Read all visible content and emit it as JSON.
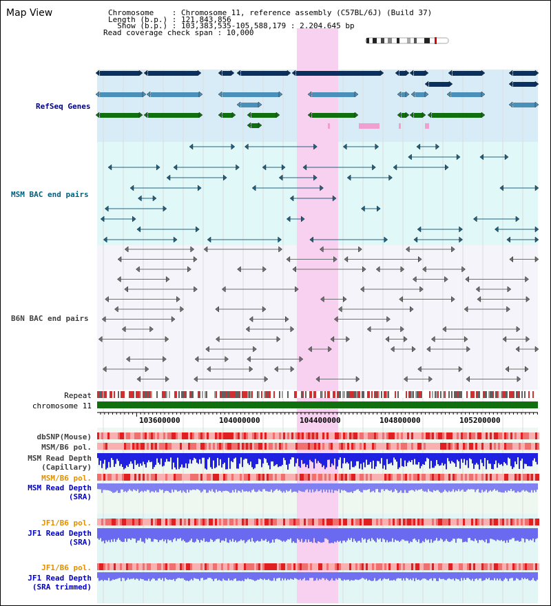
{
  "map_title": "Map View",
  "header": {
    "chromosome_line": "Chromosome    : Chromosome 11, reference assembly (C57BL/6J) (Build 37)",
    "length_line": "Length (b.p.) : 121,843,856",
    "show_line": "  Show (b.p.) : 103,383,535-105,588,179 : 2,204,645 bp",
    "coverage_line": "Read coverage check span : 10,000"
  },
  "track_labels": {
    "refseq": "RefSeq Genes",
    "msm_bac": "MSM BAC end pairs",
    "b6n_bac": "B6N BAC end pairs",
    "repeat": "Repeat",
    "chromosome": "chromosome 11",
    "dbsnp": "dbSNP(Mouse)",
    "msm_b6_pol_1": "MSM/B6 pol.",
    "msm_read_depth_cap_1": "MSM Read Depth",
    "msm_read_depth_cap_2": "(Capillary)",
    "msm_b6_pol_2": "MSM/B6 pol.",
    "msm_read_depth_sra_1": "MSM Read Depth",
    "msm_read_depth_sra_2": "(SRA)",
    "jf1_b6_pol_1": "JF1/B6 pol.",
    "jf1_read_depth_sra_1": "JF1 Read Depth",
    "jf1_read_depth_sra_2": "(SRA)",
    "jf1_b6_pol_2": "JF1/B6 pol.",
    "jf1_read_depth_trim_1": "JF1 Read Depth",
    "jf1_read_depth_trim_2": "(SRA trimmed)"
  },
  "axis": {
    "ticks": [
      "103600000",
      "104000000",
      "104400000",
      "104800000",
      "105200000"
    ]
  },
  "colors": {
    "label_blue": "#000080",
    "label_teal": "#006080",
    "label_gray": "#404040",
    "label_orange": "#e09000",
    "highlight": "#f8d0f0",
    "refseq_bg": "#d8ecf8",
    "msm_bg": "#e0f8f8",
    "b6n_bg": "#f4f4fa"
  }
}
